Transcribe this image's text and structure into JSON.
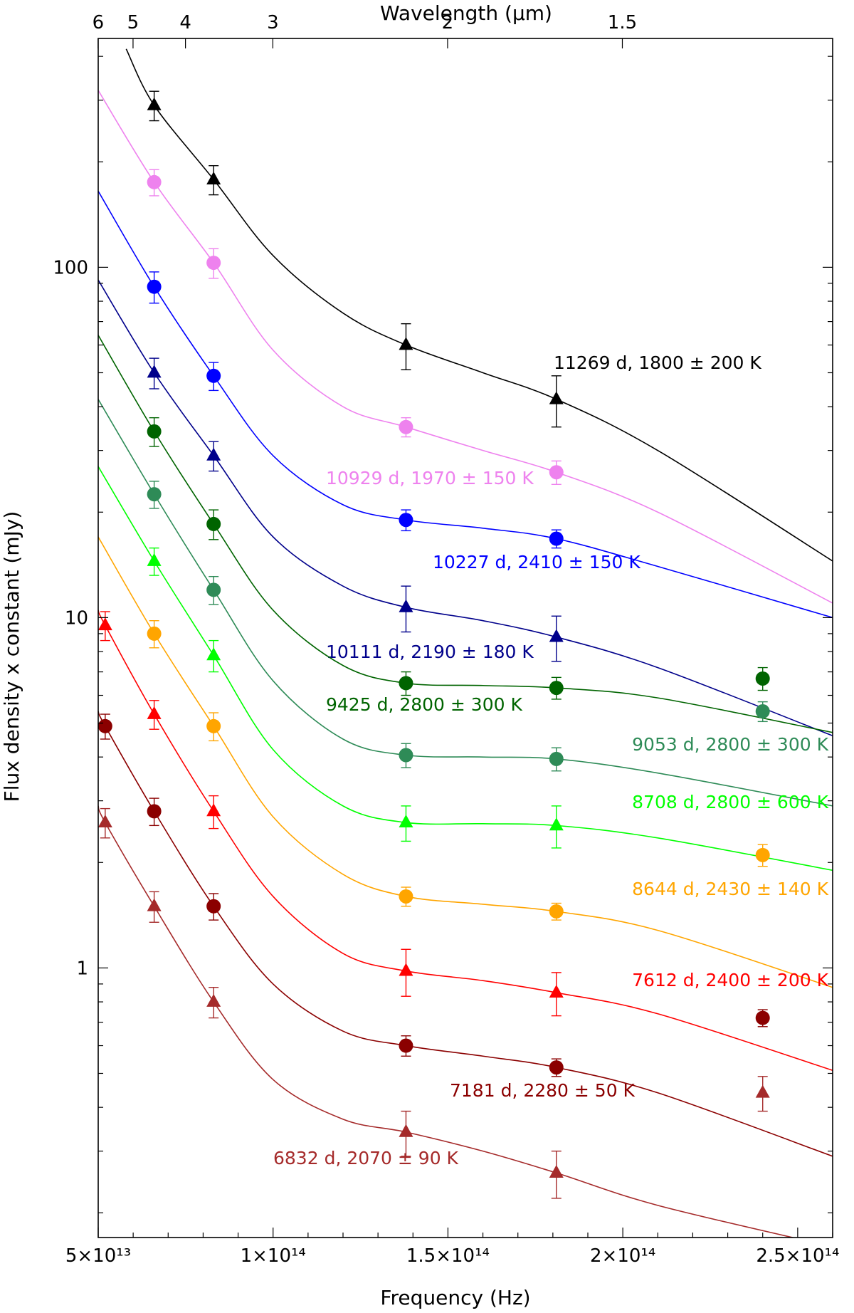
{
  "chart_data": {
    "type": "scatter",
    "title": "",
    "xlabel": "Frequency (Hz)",
    "ylabel": "Flux density x constant (mJy)",
    "top_xlabel": "Wavelength (μm)",
    "xlim": [
      50000000000000.0,
      260000000000000.0
    ],
    "ylim": [
      0.17,
      450
    ],
    "yscale": "log",
    "x_ticks": [
      {
        "value": 50000000000000.0,
        "label": "5×10¹³"
      },
      {
        "value": 100000000000000.0,
        "label": "1×10¹⁴"
      },
      {
        "value": 150000000000000.0,
        "label": "1.5×10¹⁴"
      },
      {
        "value": 200000000000000.0,
        "label": "2×10¹⁴"
      },
      {
        "value": 250000000000000.0,
        "label": "2.5×10¹⁴"
      }
    ],
    "y_ticks": [
      {
        "value": 1,
        "label": "1"
      },
      {
        "value": 10,
        "label": "10"
      },
      {
        "value": 100,
        "label": "100"
      }
    ],
    "top_ticks": [
      {
        "value": 6,
        "label": "6"
      },
      {
        "value": 5,
        "label": "5"
      },
      {
        "value": 4,
        "label": "4"
      },
      {
        "value": 3,
        "label": "3"
      },
      {
        "value": 2,
        "label": "2"
      },
      {
        "value": 1.5,
        "label": "1.5"
      }
    ],
    "series": [
      {
        "name": "11269 d",
        "label": "11269 d, 1800 ± 200 K",
        "color": "#000000",
        "marker": "triangle",
        "points": [
          {
            "x": 66000000000000.0,
            "y": 290,
            "err": 28
          },
          {
            "x": 83000000000000.0,
            "y": 178,
            "err": 17
          },
          {
            "x": 138000000000000.0,
            "y": 60,
            "err": 9
          },
          {
            "x": 181000000000000.0,
            "y": 42,
            "err": 7
          }
        ],
        "curve": [
          [
            58000000000000.0,
            420
          ],
          [
            66000000000000.0,
            290
          ],
          [
            83000000000000.0,
            178
          ],
          [
            100000000000000.0,
            108
          ],
          [
            120000000000000.0,
            74
          ],
          [
            138000000000000.0,
            60
          ],
          [
            160000000000000.0,
            50
          ],
          [
            181000000000000.0,
            42
          ],
          [
            210000000000000.0,
            30
          ],
          [
            260000000000000.0,
            14.5
          ]
        ]
      },
      {
        "name": "10929 d",
        "label": "10929 d, 1970 ± 150 K",
        "color": "#ee82ee",
        "marker": "circle",
        "points": [
          {
            "x": 66000000000000.0,
            "y": 175,
            "err": 15
          },
          {
            "x": 83000000000000.0,
            "y": 103,
            "err": 10
          },
          {
            "x": 138000000000000.0,
            "y": 35,
            "err": 2.2
          },
          {
            "x": 181000000000000.0,
            "y": 26,
            "err": 2
          }
        ],
        "curve": [
          [
            50000000000000.0,
            320
          ],
          [
            66000000000000.0,
            175
          ],
          [
            83000000000000.0,
            103
          ],
          [
            100000000000000.0,
            58
          ],
          [
            120000000000000.0,
            40
          ],
          [
            138000000000000.0,
            35
          ],
          [
            160000000000000.0,
            30
          ],
          [
            181000000000000.0,
            26
          ],
          [
            210000000000000.0,
            20
          ],
          [
            260000000000000.0,
            11
          ]
        ]
      },
      {
        "name": "10227 d",
        "label": "10227 d, 2410 ± 150 K",
        "color": "#0000ff",
        "marker": "circle",
        "points": [
          {
            "x": 66000000000000.0,
            "y": 88,
            "err": 9
          },
          {
            "x": 83000000000000.0,
            "y": 49,
            "err": 4.5
          },
          {
            "x": 138000000000000.0,
            "y": 19,
            "err": 1.3
          },
          {
            "x": 181000000000000.0,
            "y": 16.8,
            "err": 1
          }
        ],
        "curve": [
          [
            50000000000000.0,
            165
          ],
          [
            66000000000000.0,
            88
          ],
          [
            83000000000000.0,
            49
          ],
          [
            100000000000000.0,
            29
          ],
          [
            120000000000000.0,
            21
          ],
          [
            138000000000000.0,
            19
          ],
          [
            160000000000000.0,
            18
          ],
          [
            181000000000000.0,
            16.8
          ],
          [
            210000000000000.0,
            14
          ],
          [
            260000000000000.0,
            10
          ]
        ]
      },
      {
        "name": "10111 d",
        "label": "10111 d, 2190 ± 180 K",
        "color": "#00008b",
        "marker": "triangle",
        "points": [
          {
            "x": 66000000000000.0,
            "y": 50,
            "err": 5
          },
          {
            "x": 83000000000000.0,
            "y": 29,
            "err": 2.8
          },
          {
            "x": 138000000000000.0,
            "y": 10.7,
            "err": 1.6
          },
          {
            "x": 181000000000000.0,
            "y": 8.8,
            "err": 1.3
          }
        ],
        "curve": [
          [
            50000000000000.0,
            92
          ],
          [
            66000000000000.0,
            50
          ],
          [
            83000000000000.0,
            29
          ],
          [
            100000000000000.0,
            17
          ],
          [
            120000000000000.0,
            12.3
          ],
          [
            138000000000000.0,
            10.7
          ],
          [
            160000000000000.0,
            9.8
          ],
          [
            181000000000000.0,
            8.8
          ],
          [
            210000000000000.0,
            7.2
          ],
          [
            260000000000000.0,
            4.6
          ]
        ]
      },
      {
        "name": "9425 d",
        "label": "9425 d, 2800 ± 300 K",
        "color": "#006400",
        "marker": "circle",
        "points": [
          {
            "x": 66000000000000.0,
            "y": 34,
            "err": 3.2
          },
          {
            "x": 83000000000000.0,
            "y": 18.5,
            "err": 1.8
          },
          {
            "x": 138000000000000.0,
            "y": 6.5,
            "err": 0.5
          },
          {
            "x": 181000000000000.0,
            "y": 6.3,
            "err": 0.45
          },
          {
            "x": 240000000000000.0,
            "y": 6.7,
            "err": 0.5
          }
        ],
        "curve": [
          [
            50000000000000.0,
            64
          ],
          [
            66000000000000.0,
            34
          ],
          [
            83000000000000.0,
            18.5
          ],
          [
            100000000000000.0,
            10.5
          ],
          [
            120000000000000.0,
            7.3
          ],
          [
            138000000000000.0,
            6.5
          ],
          [
            160000000000000.0,
            6.4
          ],
          [
            181000000000000.0,
            6.3
          ],
          [
            210000000000000.0,
            5.9
          ],
          [
            260000000000000.0,
            4.7
          ]
        ]
      },
      {
        "name": "9053 d",
        "label": "9053 d, 2800 ± 300 K",
        "color": "#2e8b57",
        "marker": "circle",
        "points": [
          {
            "x": 66000000000000.0,
            "y": 22.5,
            "err": 2
          },
          {
            "x": 83000000000000.0,
            "y": 12,
            "err": 1.1
          },
          {
            "x": 138000000000000.0,
            "y": 4.05,
            "err": 0.32
          },
          {
            "x": 181000000000000.0,
            "y": 3.95,
            "err": 0.3
          },
          {
            "x": 240000000000000.0,
            "y": 5.4,
            "err": 0.35
          }
        ],
        "curve": [
          [
            50000000000000.0,
            42
          ],
          [
            66000000000000.0,
            22.5
          ],
          [
            83000000000000.0,
            12
          ],
          [
            100000000000000.0,
            6.6
          ],
          [
            120000000000000.0,
            4.5
          ],
          [
            138000000000000.0,
            4.05
          ],
          [
            160000000000000.0,
            4.0
          ],
          [
            181000000000000.0,
            3.95
          ],
          [
            210000000000000.0,
            3.6
          ],
          [
            260000000000000.0,
            2.9
          ]
        ]
      },
      {
        "name": "8708 d",
        "label": "8708 d, 2800 ± 600 K",
        "color": "#00ff00",
        "marker": "triangle",
        "points": [
          {
            "x": 66000000000000.0,
            "y": 14.5,
            "err": 1.3
          },
          {
            "x": 83000000000000.0,
            "y": 7.8,
            "err": 0.8
          },
          {
            "x": 138000000000000.0,
            "y": 2.6,
            "err": 0.3
          },
          {
            "x": 181000000000000.0,
            "y": 2.55,
            "err": 0.35
          }
        ],
        "curve": [
          [
            50000000000000.0,
            27
          ],
          [
            66000000000000.0,
            14.5
          ],
          [
            83000000000000.0,
            7.8
          ],
          [
            100000000000000.0,
            4.2
          ],
          [
            120000000000000.0,
            2.9
          ],
          [
            138000000000000.0,
            2.6
          ],
          [
            160000000000000.0,
            2.58
          ],
          [
            181000000000000.0,
            2.55
          ],
          [
            210000000000000.0,
            2.35
          ],
          [
            260000000000000.0,
            1.9
          ]
        ]
      },
      {
        "name": "8644 d",
        "label": "8644 d, 2430 ± 140 K",
        "color": "#ffa500",
        "marker": "circle",
        "points": [
          {
            "x": 66000000000000.0,
            "y": 9,
            "err": 0.8
          },
          {
            "x": 83000000000000.0,
            "y": 4.9,
            "err": 0.45
          },
          {
            "x": 138000000000000.0,
            "y": 1.6,
            "err": 0.1
          },
          {
            "x": 181000000000000.0,
            "y": 1.45,
            "err": 0.08
          },
          {
            "x": 240000000000000.0,
            "y": 2.1,
            "err": 0.15
          }
        ],
        "curve": [
          [
            50000000000000.0,
            17
          ],
          [
            66000000000000.0,
            9
          ],
          [
            83000000000000.0,
            4.9
          ],
          [
            100000000000000.0,
            2.7
          ],
          [
            120000000000000.0,
            1.85
          ],
          [
            138000000000000.0,
            1.6
          ],
          [
            160000000000000.0,
            1.52
          ],
          [
            181000000000000.0,
            1.45
          ],
          [
            210000000000000.0,
            1.28
          ],
          [
            260000000000000.0,
            0.88
          ]
        ]
      },
      {
        "name": "7612 d",
        "label": "7612 d, 2400 ± 200 K",
        "color": "#ff0000",
        "marker": "triangle",
        "points": [
          {
            "x": 52000000000000.0,
            "y": 9.5,
            "err": 0.9
          },
          {
            "x": 66000000000000.0,
            "y": 5.3,
            "err": 0.5
          },
          {
            "x": 83000000000000.0,
            "y": 2.8,
            "err": 0.3
          },
          {
            "x": 138000000000000.0,
            "y": 0.98,
            "err": 0.15
          },
          {
            "x": 181000000000000.0,
            "y": 0.85,
            "err": 0.12
          }
        ],
        "curve": [
          [
            50000000000000.0,
            10.5
          ],
          [
            52000000000000.0,
            9.5
          ],
          [
            66000000000000.0,
            5.3
          ],
          [
            83000000000000.0,
            2.8
          ],
          [
            100000000000000.0,
            1.6
          ],
          [
            120000000000000.0,
            1.1
          ],
          [
            138000000000000.0,
            0.98
          ],
          [
            160000000000000.0,
            0.92
          ],
          [
            181000000000000.0,
            0.85
          ],
          [
            210000000000000.0,
            0.74
          ],
          [
            260000000000000.0,
            0.51
          ]
        ]
      },
      {
        "name": "7181 d",
        "label": "7181 d, 2280 ± 50 K",
        "color": "#8b0000",
        "marker": "circle",
        "points": [
          {
            "x": 52000000000000.0,
            "y": 4.9,
            "err": 0.4
          },
          {
            "x": 66000000000000.0,
            "y": 2.8,
            "err": 0.25
          },
          {
            "x": 83000000000000.0,
            "y": 1.5,
            "err": 0.13
          },
          {
            "x": 138000000000000.0,
            "y": 0.6,
            "err": 0.04
          },
          {
            "x": 181000000000000.0,
            "y": 0.52,
            "err": 0.03
          },
          {
            "x": 240000000000000.0,
            "y": 0.72,
            "err": 0.04
          }
        ],
        "curve": [
          [
            50000000000000.0,
            5.4
          ],
          [
            52000000000000.0,
            4.9
          ],
          [
            66000000000000.0,
            2.8
          ],
          [
            83000000000000.0,
            1.5
          ],
          [
            100000000000000.0,
            0.9
          ],
          [
            120000000000000.0,
            0.66
          ],
          [
            138000000000000.0,
            0.6
          ],
          [
            160000000000000.0,
            0.56
          ],
          [
            181000000000000.0,
            0.52
          ],
          [
            210000000000000.0,
            0.44
          ],
          [
            260000000000000.0,
            0.29
          ]
        ]
      },
      {
        "name": "6832 d",
        "label": "6832 d, 2070 ± 90 K",
        "color": "#a52a2a",
        "marker": "triangle",
        "points": [
          {
            "x": 52000000000000.0,
            "y": 2.6,
            "err": 0.25
          },
          {
            "x": 66000000000000.0,
            "y": 1.5,
            "err": 0.15
          },
          {
            "x": 83000000000000.0,
            "y": 0.8,
            "err": 0.08
          },
          {
            "x": 138000000000000.0,
            "y": 0.34,
            "err": 0.05
          },
          {
            "x": 181000000000000.0,
            "y": 0.26,
            "err": 0.04
          },
          {
            "x": 240000000000000.0,
            "y": 0.44,
            "err": 0.05
          }
        ],
        "curve": [
          [
            50000000000000.0,
            2.9
          ],
          [
            52000000000000.0,
            2.6
          ],
          [
            66000000000000.0,
            1.5
          ],
          [
            83000000000000.0,
            0.8
          ],
          [
            100000000000000.0,
            0.48
          ],
          [
            120000000000000.0,
            0.37
          ],
          [
            138000000000000.0,
            0.34
          ],
          [
            160000000000000.0,
            0.3
          ],
          [
            181000000000000.0,
            0.26
          ],
          [
            210000000000000.0,
            0.21
          ],
          [
            260000000000000.0,
            0.16
          ]
        ]
      }
    ]
  }
}
